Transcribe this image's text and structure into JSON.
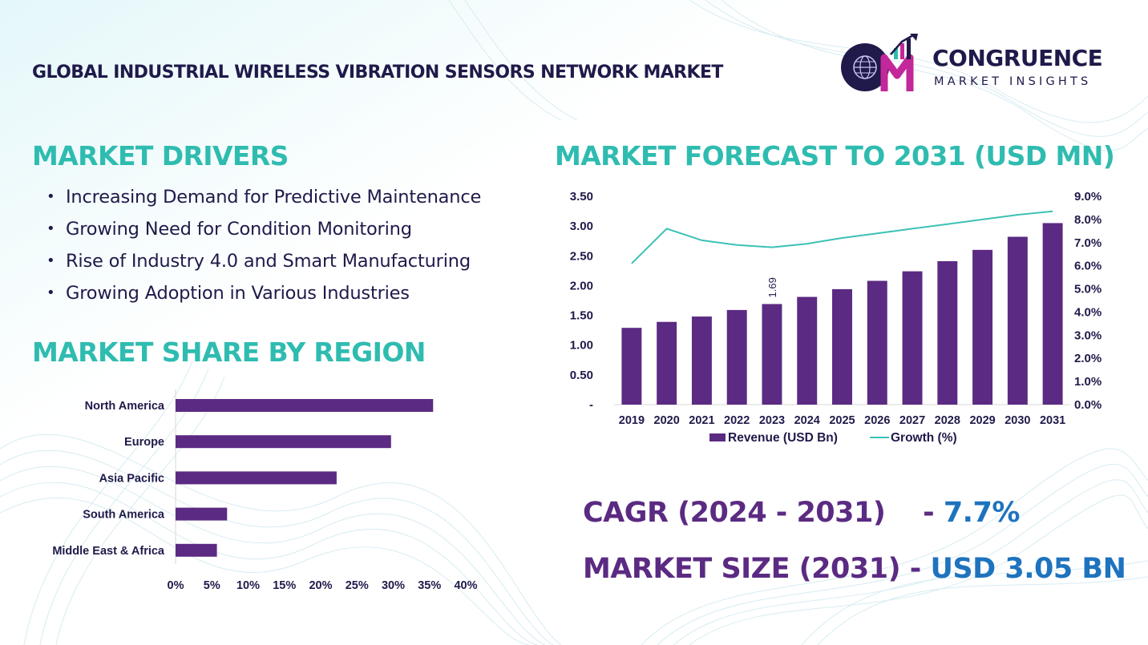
{
  "header": {
    "title": "GLOBAL INDUSTRIAL WIRELESS VIBRATION SENSORS NETWORK MARKET",
    "logo": {
      "letters": "CM",
      "name": "CONGRUENCE",
      "tagline": "MARKET INSIGHTS",
      "icon": "globe-chart-logo"
    }
  },
  "drivers": {
    "title": "MARKET DRIVERS",
    "bullet": "•",
    "items": [
      "Increasing Demand for Predictive Maintenance",
      "Growing Need for Condition Monitoring",
      "Rise of Industry 4.0 and Smart Manufacturing",
      "Growing Adoption in Various Industries"
    ]
  },
  "region": {
    "title": "MARKET SHARE BY REGION"
  },
  "forecast": {
    "title": "MARKET FORECAST TO 2031 (USD MN)"
  },
  "stats": {
    "cagr_label": "CAGR (2024 - 2031)",
    "cagr_sep": "    - ",
    "cagr_value": "7.7%",
    "size_label": "MARKET SIZE (2031)",
    "size_sep": " - ",
    "size_value": "USD 3.05 BN"
  },
  "colors": {
    "teal": "#2fbcb0",
    "purple": "#5b2a82",
    "blue": "#1e73be",
    "navy": "#1f1a4a",
    "growth_line": "#3cc1b6"
  },
  "chart_data": [
    {
      "type": "bar",
      "orientation": "horizontal",
      "categories": [
        "North America",
        "Europe",
        "Asia Pacific",
        "South America",
        "Middle East & Africa"
      ],
      "values": [
        35.5,
        29.7,
        22.2,
        7.1,
        5.7
      ],
      "xlim": [
        0,
        40
      ],
      "xticks": [
        "0%",
        "5%",
        "10%",
        "15%",
        "20%",
        "25%",
        "30%",
        "35%",
        "40%"
      ],
      "xtick_values": [
        0,
        5,
        10,
        15,
        20,
        25,
        30,
        35,
        40
      ]
    },
    {
      "type": "bar",
      "categories": [
        "2019",
        "2020",
        "2021",
        "2022",
        "2023",
        "2024",
        "2025",
        "2026",
        "2027",
        "2028",
        "2029",
        "2030",
        "2031"
      ],
      "series": [
        {
          "name": "Revenue (USD Bn)",
          "type": "bar",
          "axis": "left",
          "values": [
            1.29,
            1.39,
            1.48,
            1.59,
            1.69,
            1.81,
            1.94,
            2.08,
            2.24,
            2.41,
            2.6,
            2.82,
            3.05
          ]
        },
        {
          "name": "Growth (%)",
          "type": "line",
          "axis": "right",
          "values": [
            6.1,
            7.6,
            7.1,
            6.9,
            6.8,
            6.95,
            7.2,
            7.4,
            7.6,
            7.8,
            8.0,
            8.2,
            8.35
          ]
        }
      ],
      "data_labels": [
        {
          "category": "2023",
          "text": "1.69"
        }
      ],
      "ylim_left": [
        0,
        3.5
      ],
      "yticks_left": [
        "-",
        "0.50",
        "1.00",
        "1.50",
        "2.00",
        "2.50",
        "3.00",
        "3.50"
      ],
      "ytick_values_left": [
        0,
        0.5,
        1.0,
        1.5,
        2.0,
        2.5,
        3.0,
        3.5
      ],
      "ylim_right": [
        0,
        9
      ],
      "yticks_right": [
        "0.0%",
        "1.0%",
        "2.0%",
        "3.0%",
        "4.0%",
        "5.0%",
        "6.0%",
        "7.0%",
        "8.0%",
        "9.0%"
      ],
      "ytick_values_right": [
        0,
        1,
        2,
        3,
        4,
        5,
        6,
        7,
        8,
        9
      ],
      "legend": "bottom"
    }
  ]
}
